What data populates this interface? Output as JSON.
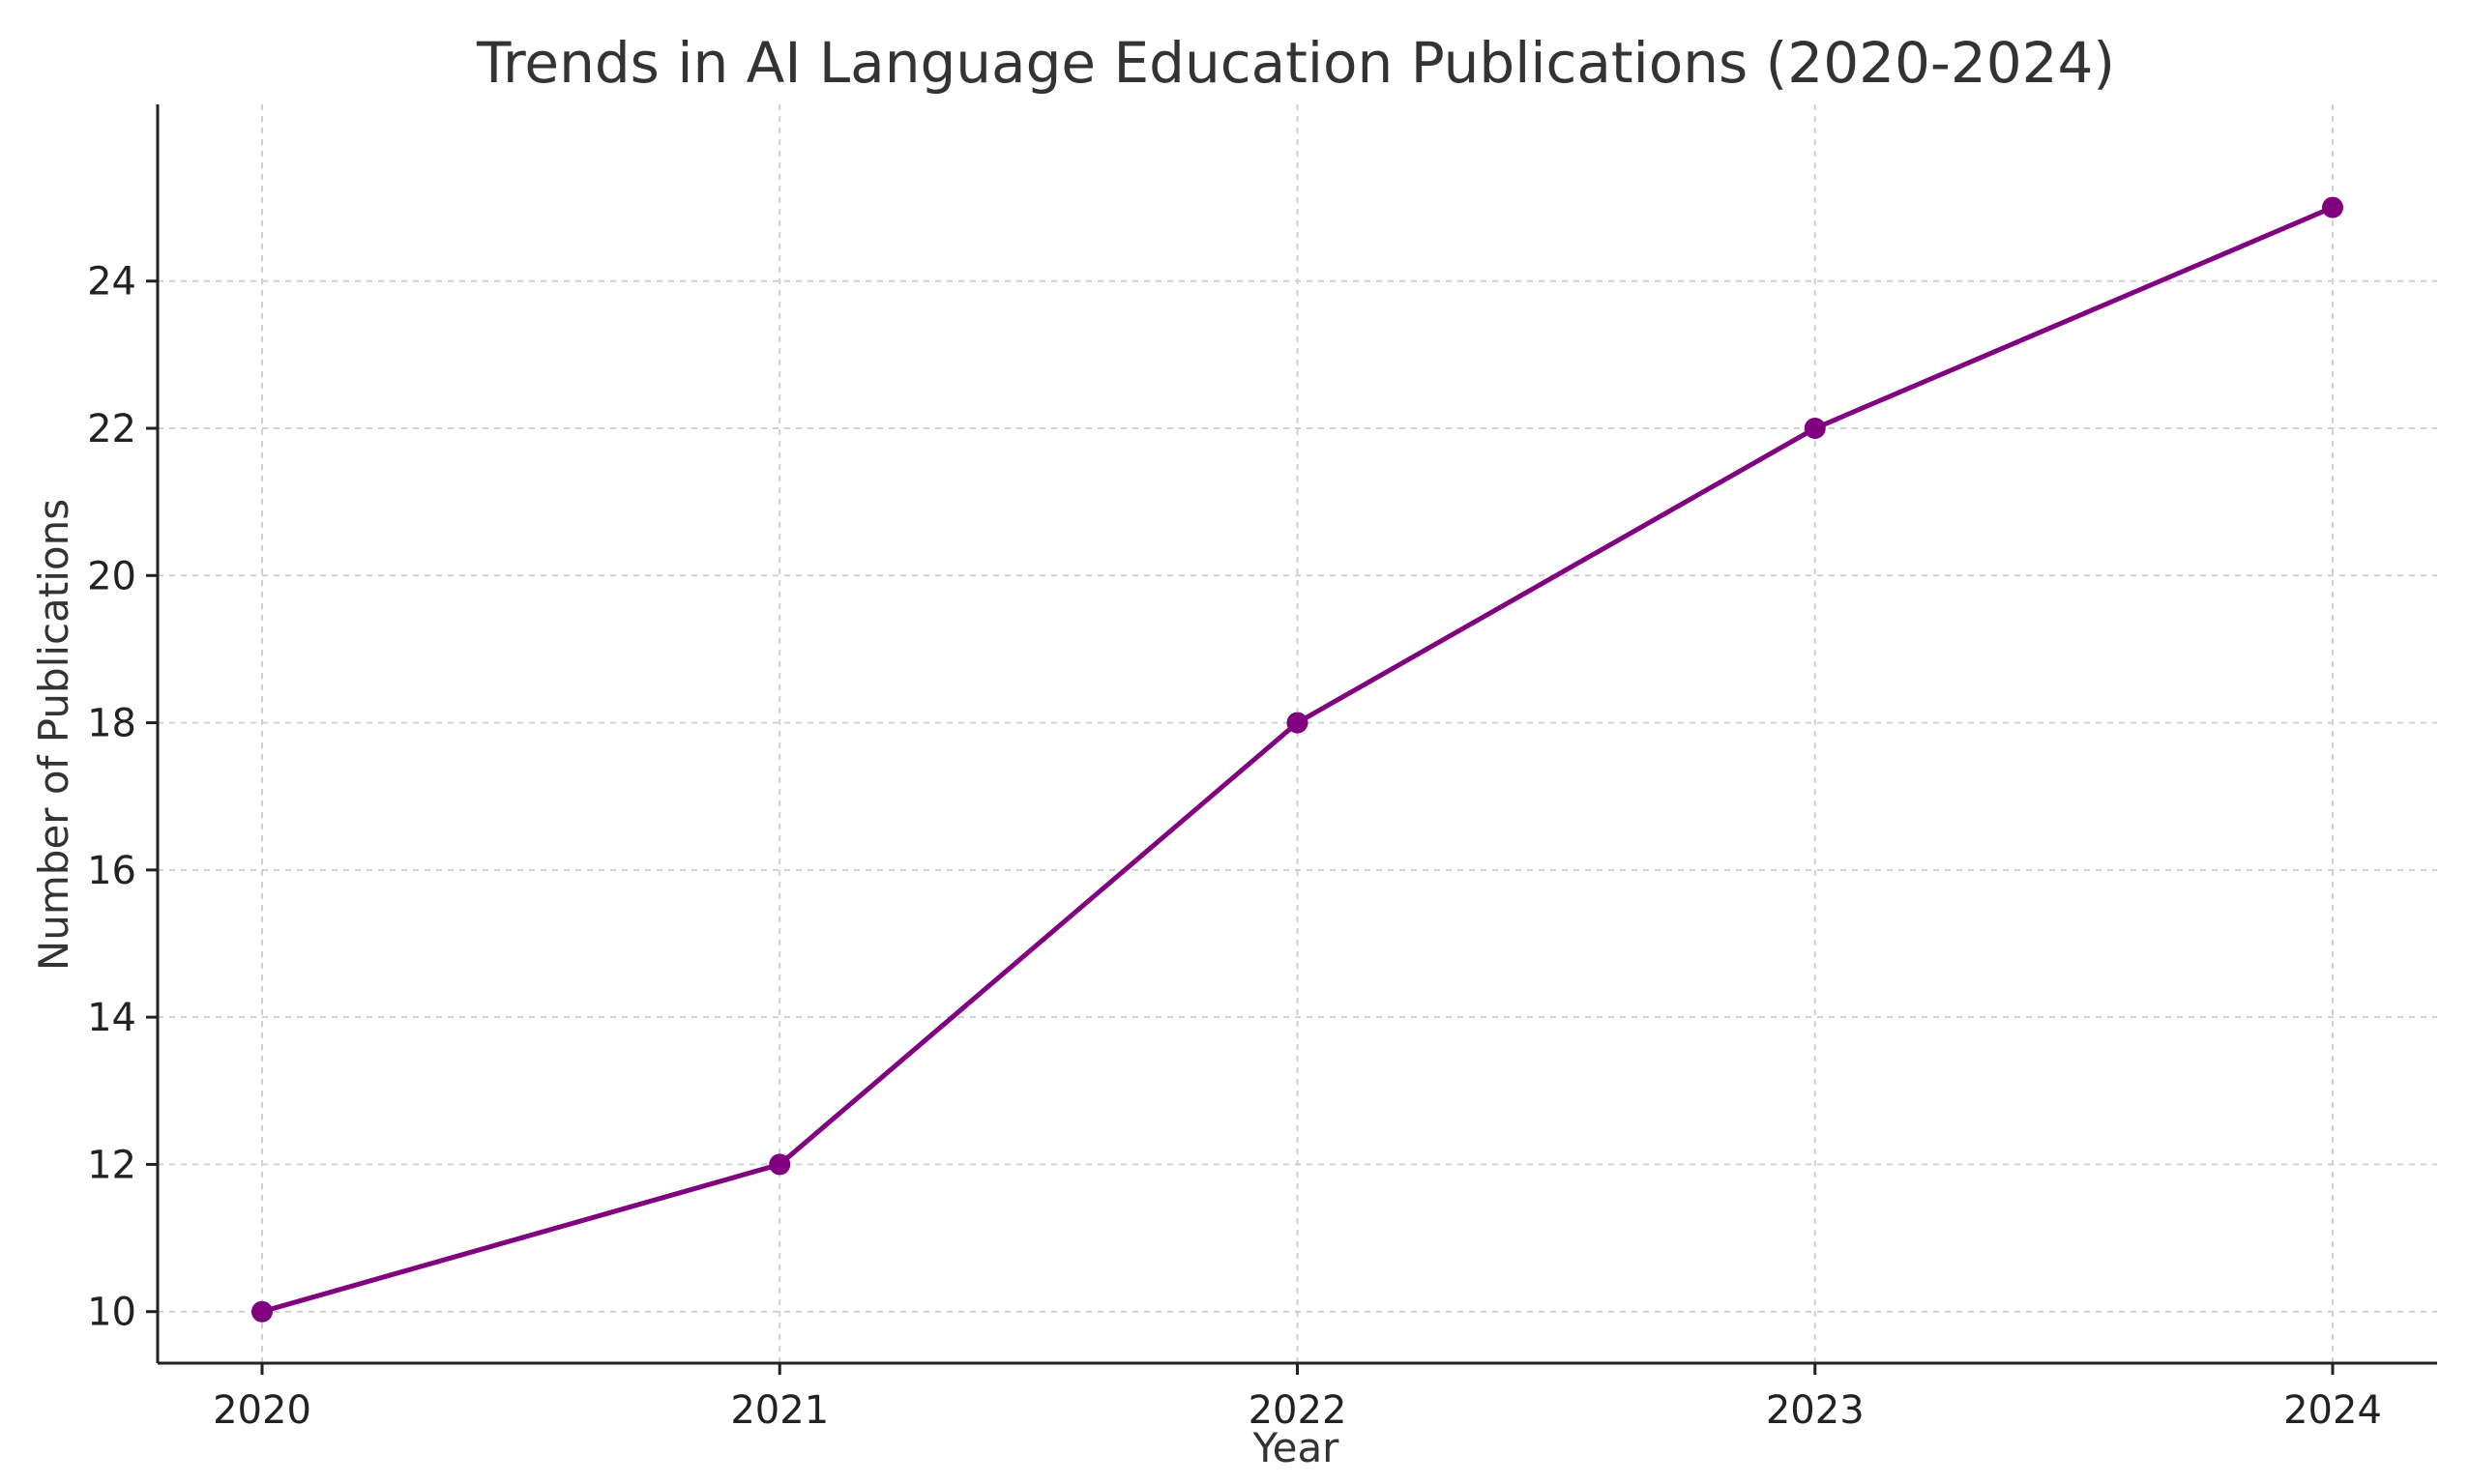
{
  "chart_data": {
    "type": "line",
    "title": "Trends in AI Language Education Publications (2020-2024)",
    "xlabel": "Year",
    "ylabel": "Number of Publications",
    "categories": [
      "2020",
      "2021",
      "2022",
      "2023",
      "2024"
    ],
    "series": [
      {
        "values": [
          10,
          12,
          18,
          22,
          25
        ],
        "color": "#800080"
      }
    ],
    "ylim": [
      9.3,
      26.4
    ],
    "yticks": [
      10,
      12,
      14,
      16,
      18,
      20,
      22,
      24
    ],
    "grid": true,
    "marker": "circle"
  }
}
